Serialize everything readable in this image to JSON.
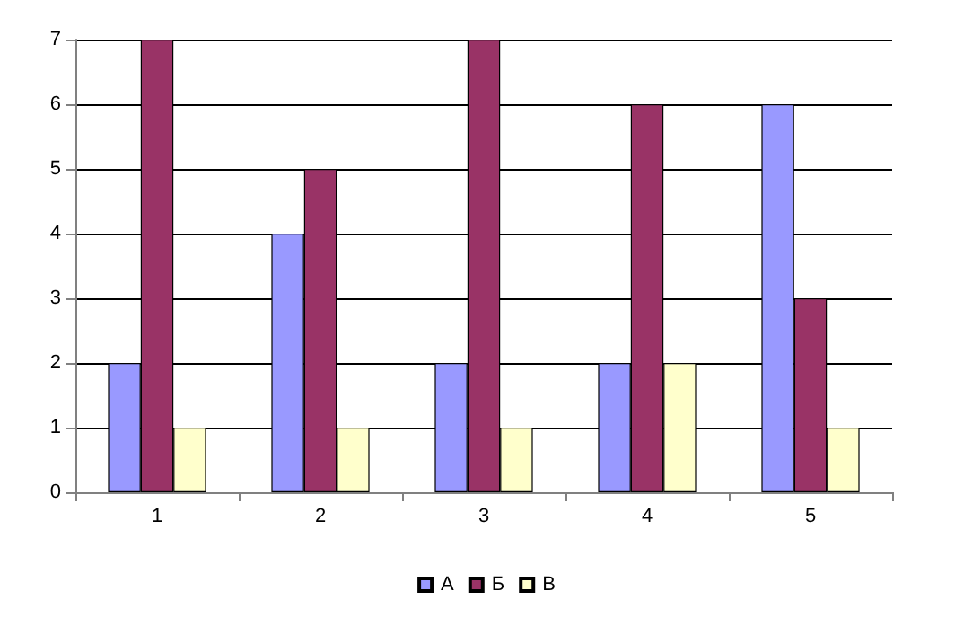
{
  "chart_data": {
    "type": "bar",
    "categories": [
      "1",
      "2",
      "3",
      "4",
      "5"
    ],
    "series": [
      {
        "name": "А",
        "color": "#9999ff",
        "values": [
          2,
          4,
          2,
          2,
          6
        ]
      },
      {
        "name": "Б",
        "color": "#993366",
        "values": [
          7,
          5,
          7,
          6,
          3
        ]
      },
      {
        "name": "В",
        "color": "#ffffcc",
        "values": [
          1,
          1,
          1,
          2,
          1
        ]
      }
    ],
    "ylim": [
      0,
      7
    ],
    "yticks": [
      0,
      1,
      2,
      3,
      4,
      5,
      6,
      7
    ],
    "grid": "y",
    "legend": "bottom"
  }
}
